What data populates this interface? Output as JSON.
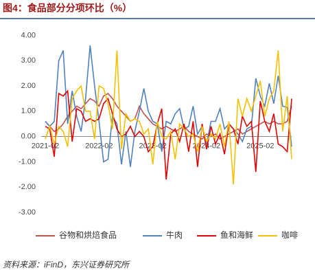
{
  "chart_data": {
    "type": "line",
    "title": "图4：食品部分分项环比（%）",
    "categories": [
      "2021-02",
      null,
      null,
      null,
      null,
      null,
      null,
      null,
      null,
      null,
      null,
      null,
      "2022-02",
      null,
      null,
      null,
      null,
      null,
      null,
      null,
      null,
      null,
      null,
      null,
      "2023-02",
      null,
      null,
      null,
      null,
      null,
      null,
      null,
      null,
      null,
      null,
      null,
      "2024-02",
      null,
      null,
      null,
      null,
      null,
      null,
      null,
      null,
      null,
      null,
      null,
      "2025-02",
      null,
      null,
      null,
      null,
      null,
      null,
      null
    ],
    "series": [
      {
        "name": "谷物和烘焙食品",
        "color": "#c0504d",
        "values": [
          0.6,
          0.4,
          0.2,
          0.3,
          0.5,
          0.8,
          1.0,
          1.2,
          1.1,
          1.3,
          1.5,
          1.4,
          1.2,
          1.6,
          1.7,
          1.5,
          1.2,
          1.0,
          0.8,
          0.6,
          0.7,
          1.2,
          0.9,
          0.7,
          0.5,
          0.4,
          0.3,
          0.4,
          0.3,
          0.2,
          0.3,
          0.4,
          0.2,
          0.1,
          0.0,
          -0.1,
          0.1,
          0.0,
          0.1,
          -0.1,
          0.0,
          0.1,
          0.2,
          0.3,
          0.1,
          0.2,
          0.3,
          0.4,
          0.5,
          0.6,
          0.5,
          0.6,
          0.5,
          0.5,
          0.6,
          1.2
        ]
      },
      {
        "name": "牛肉",
        "color": "#4f81bd",
        "values": [
          0.6,
          0.4,
          0.6,
          3.0,
          3.4,
          0.5,
          1.8,
          0.8,
          0.2,
          1.5,
          3.6,
          2.0,
          0.6,
          -1.0,
          -0.9,
          0.8,
          0.5,
          -1.1,
          0.2,
          -1.2,
          0.2,
          1.0,
          1.9,
          1.0,
          0.6,
          0.5,
          -0.6,
          0.6,
          0.5,
          0.9,
          1.1,
          0.3,
          0.4,
          1.2,
          0.1,
          0.4,
          -0.3,
          0.6,
          0.6,
          1.1,
          0.3,
          0.5,
          0.3,
          0.1,
          -0.2,
          0.3,
          0.4,
          2.3,
          1.6,
          1.2,
          2.1,
          1.3,
          2.4,
          1.2,
          1.15,
          -0.4
        ]
      },
      {
        "name": "鱼和海鲜",
        "color": "#e00000",
        "values": [
          0.4,
          0.3,
          -0.8,
          1.7,
          1.6,
          1.8,
          -0.2,
          1.1,
          1.0,
          0.6,
          0.7,
          0.6,
          0.7,
          1.3,
          1.5,
          0.9,
          0.3,
          0.0,
          0.1,
          0.4,
          0.0,
          0.2,
          0.0,
          -0.6,
          -0.4,
          0.5,
          1.1,
          -1.7,
          0.1,
          0.3,
          -0.2,
          0.5,
          -0.6,
          0.6,
          -1.2,
          0.5,
          -0.5,
          0.4,
          -0.3,
          0.1,
          -0.7,
          0.5,
          0.3,
          -0.3,
          0.8,
          0.4,
          0.6,
          -1.4,
          1.4,
          0.6,
          0.2,
          0.9,
          -0.3,
          -0.4,
          -0.6,
          1.5
        ]
      },
      {
        "name": "咖啡",
        "color": "#f5c000",
        "values": [
          -0.1,
          0.4,
          -0.3,
          0.4,
          0.2,
          -0.4,
          1.5,
          1.8,
          2.0,
          1.0,
          1.0,
          -0.1,
          2.0,
          1.9,
          1.3,
          0.3,
          3.4,
          -0.5,
          0.9,
          0.6,
          0.7,
          0.6,
          0.1,
          0.3,
          -1.1,
          0.6,
          0.0,
          -0.1,
          0.2,
          -0.9,
          0.5,
          0.3,
          0.0,
          0.1,
          -0.6,
          0.4,
          -0.2,
          0.1,
          -0.1,
          0.5,
          -0.4,
          0.6,
          -1.9,
          1.5,
          0.8,
          1.5,
          1.0,
          1.6,
          2.2,
          0.8,
          1.5,
          1.8,
          3.4,
          0.2,
          1.6,
          -0.9
        ]
      }
    ],
    "ylim": [
      -3.3,
      4.2
    ],
    "yticks": [
      {
        "value": 4,
        "label": "4.00"
      },
      {
        "value": 3,
        "label": "3.00"
      },
      {
        "value": 2,
        "label": "2.00"
      },
      {
        "value": 1,
        "label": "1.00"
      },
      {
        "value": 0,
        "label": "0.00"
      },
      {
        "value": -1,
        "label": "-1.00"
      },
      {
        "value": -2,
        "label": "-2.00"
      },
      {
        "value": -3,
        "label": "-3.00"
      }
    ],
    "source": "资料来源：iFinD，东兴证券研究所"
  }
}
